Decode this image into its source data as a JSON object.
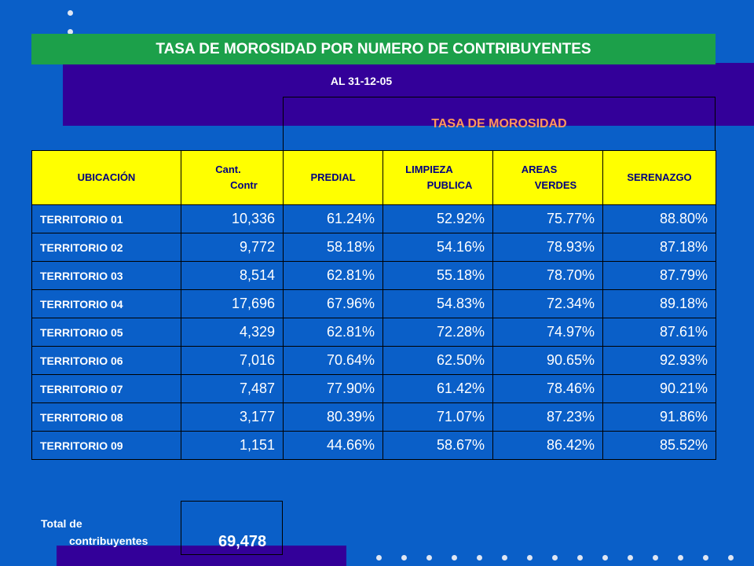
{
  "title": "TASA DE MOROSIDAD POR NUMERO DE CONTRIBUYENTES",
  "date_label": "AL 31-12-05",
  "tasa_header": "TASA DE MOROSIDAD",
  "columns": {
    "ubicacion": "UBICACIÓN",
    "cant": "Cant.",
    "contr": "Contr",
    "predial": "PREDIAL",
    "limpieza": "LIMPIEZA",
    "publica": "PUBLICA",
    "areas": "AREAS",
    "verdes": "VERDES",
    "serenazgo": "SERENAZGO"
  },
  "rows": [
    {
      "territorio": "TERRITORIO  01",
      "cant": "10,336",
      "predial": "61.24%",
      "limpieza": "52.92%",
      "areas": "75.77%",
      "serenazgo": "88.80%"
    },
    {
      "territorio": "TERRITORIO  02",
      "cant": "9,772",
      "predial": "58.18%",
      "limpieza": "54.16%",
      "areas": "78.93%",
      "serenazgo": "87.18%"
    },
    {
      "territorio": "TERRITORIO  03",
      "cant": "8,514",
      "predial": "62.81%",
      "limpieza": "55.18%",
      "areas": "78.70%",
      "serenazgo": "87.79%"
    },
    {
      "territorio": "TERRITORIO  04",
      "cant": "17,696",
      "predial": "67.96%",
      "limpieza": "54.83%",
      "areas": "72.34%",
      "serenazgo": "89.18%"
    },
    {
      "territorio": "TERRITORIO  05",
      "cant": "4,329",
      "predial": "62.81%",
      "limpieza": "72.28%",
      "areas": "74.97%",
      "serenazgo": "87.61%"
    },
    {
      "territorio": "TERRITORIO  06",
      "cant": "7,016",
      "predial": "70.64%",
      "limpieza": "62.50%",
      "areas": "90.65%",
      "serenazgo": "92.93%"
    },
    {
      "territorio": "TERRITORIO  07",
      "cant": "7,487",
      "predial": "77.90%",
      "limpieza": "61.42%",
      "areas": "78.46%",
      "serenazgo": "90.21%"
    },
    {
      "territorio": "TERRITORIO  08",
      "cant": "3,177",
      "predial": "80.39%",
      "limpieza": "71.07%",
      "areas": "87.23%",
      "serenazgo": "91.86%"
    },
    {
      "territorio": "TERRITORIO  09",
      "cant": "1,151",
      "predial": "44.66%",
      "limpieza": "58.67%",
      "areas": "86.42%",
      "serenazgo": "85.52%"
    }
  ],
  "total": {
    "label_line1": "Total de",
    "label_line2": "contribuyentes",
    "value": "69,478"
  },
  "colors": {
    "background": "#0a5fc8",
    "title_bar": "#1ca04a",
    "purple": "#330099",
    "header_fill": "#ffff00",
    "header_text": "#000080",
    "tasa_text": "#ff9a5a"
  }
}
